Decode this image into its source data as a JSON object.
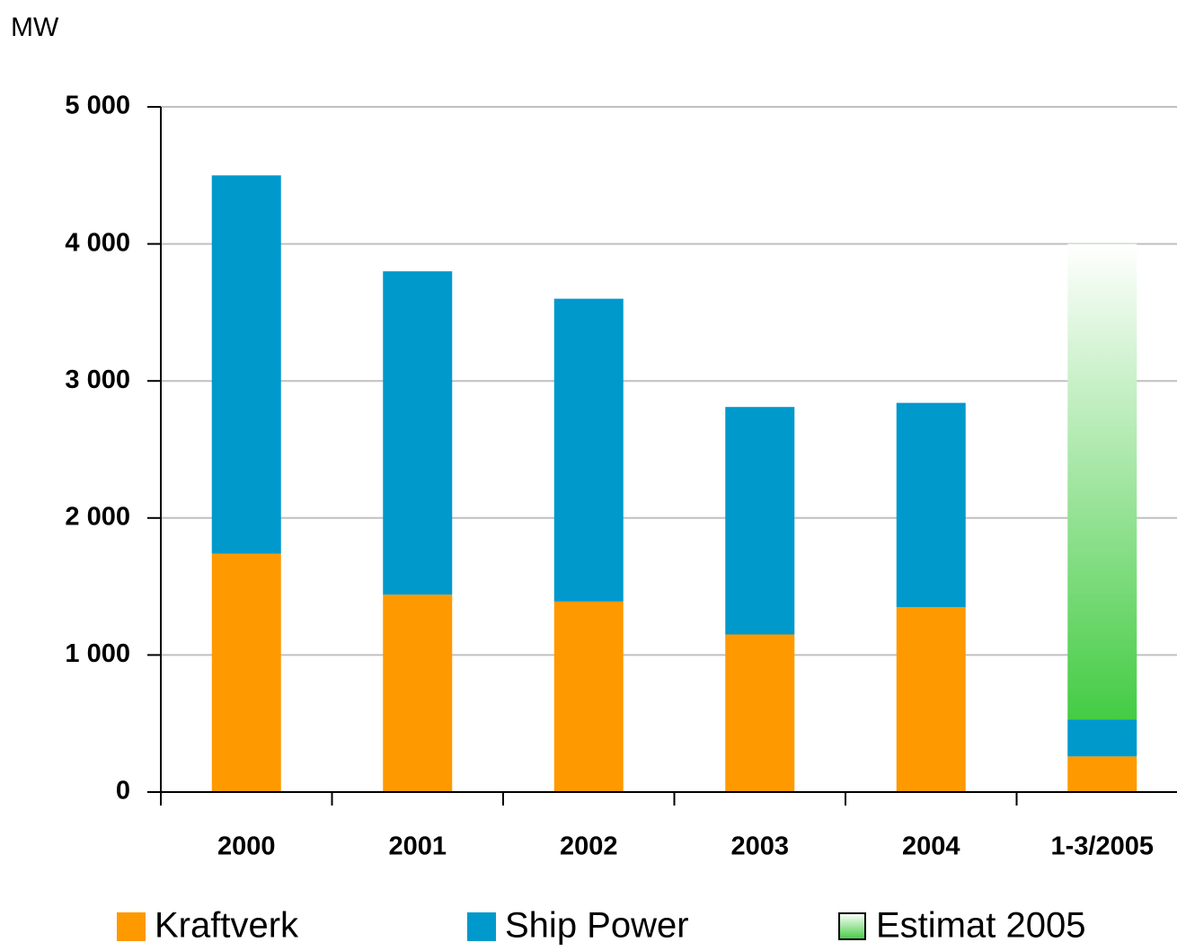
{
  "chart_data": {
    "type": "stacked_bar",
    "y_label": "MW",
    "categories": [
      "2000",
      "2001",
      "2002",
      "2003",
      "2004",
      "1-3/2005"
    ],
    "series": [
      {
        "name": "Kraftverk",
        "color": "#ff9900",
        "values": [
          1740,
          1440,
          1390,
          1150,
          1350,
          260
        ]
      },
      {
        "name": "Ship Power",
        "color": "#0099cc",
        "values": [
          2760,
          2360,
          2210,
          1660,
          1490,
          270
        ]
      },
      {
        "name": "Estimat 2005",
        "color": "#44cc44",
        "values": [
          null,
          null,
          null,
          null,
          null,
          3470
        ]
      }
    ],
    "ylim": [
      0,
      5000
    ],
    "yticks": [
      0,
      {
        "value": 1000,
        "label": "1 000"
      },
      {
        "value": 2000,
        "label": "2 000"
      },
      {
        "value": 3000,
        "label": "3 000"
      },
      {
        "value": 4000,
        "label": "4 000"
      },
      {
        "value": 5000,
        "label": "5 000"
      }
    ],
    "grid": true
  }
}
